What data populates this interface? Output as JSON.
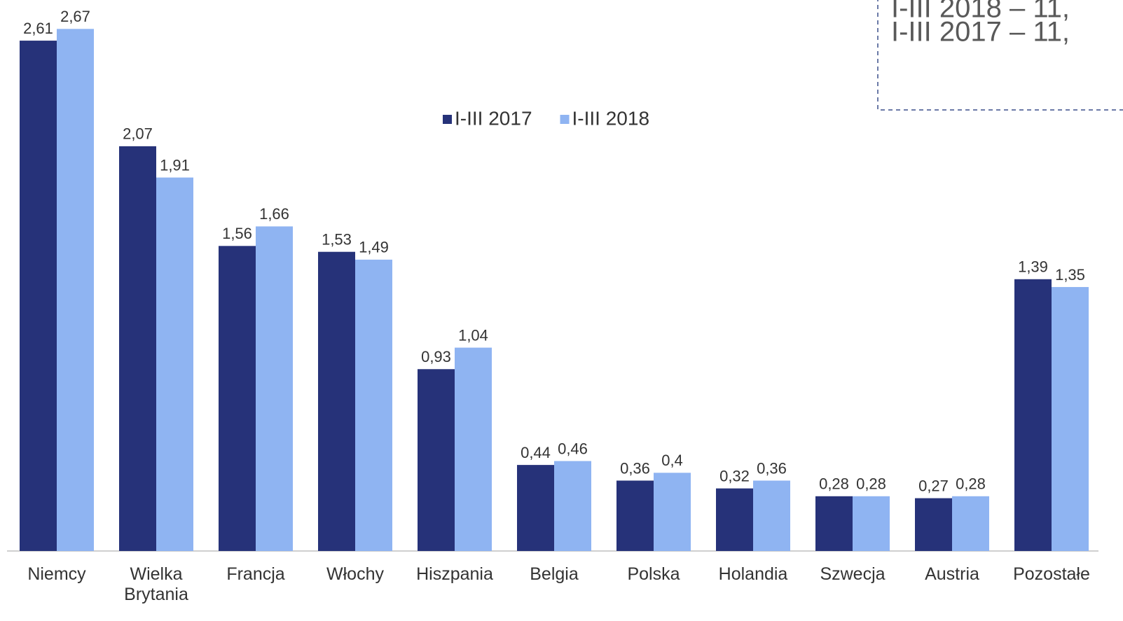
{
  "chart_data": {
    "type": "bar",
    "annotations": [
      "I-III 2018 – 11,",
      "I-III 2017 – 11,"
    ],
    "categories": [
      "Niemcy",
      "Wielka Brytania",
      "Francja",
      "Włochy",
      "Hiszpania",
      "Belgia",
      "Polska",
      "Holandia",
      "Szwecja",
      "Austria",
      "Pozostałe"
    ],
    "series": [
      {
        "name": "I-III 2017",
        "color": "#263279",
        "values": [
          2.61,
          2.07,
          1.56,
          1.53,
          0.93,
          0.44,
          0.36,
          0.32,
          0.28,
          0.27,
          1.39
        ],
        "value_labels": [
          "2,61",
          "2,07",
          "1,56",
          "1,53",
          "0,93",
          "0,44",
          "0,36",
          "0,32",
          "0,28",
          "0,27",
          "1,39"
        ]
      },
      {
        "name": "I-III 2018",
        "color": "#8fb4f2",
        "values": [
          2.67,
          1.91,
          1.66,
          1.49,
          1.04,
          0.46,
          0.4,
          0.36,
          0.28,
          0.28,
          1.35
        ],
        "value_labels": [
          "2,67",
          "1,91",
          "1,66",
          "1,49",
          "1,04",
          "0,46",
          "0,4",
          "0,36",
          "0,28",
          "0,28",
          "1,35"
        ]
      }
    ],
    "ylim": [
      0,
      2.8
    ]
  }
}
